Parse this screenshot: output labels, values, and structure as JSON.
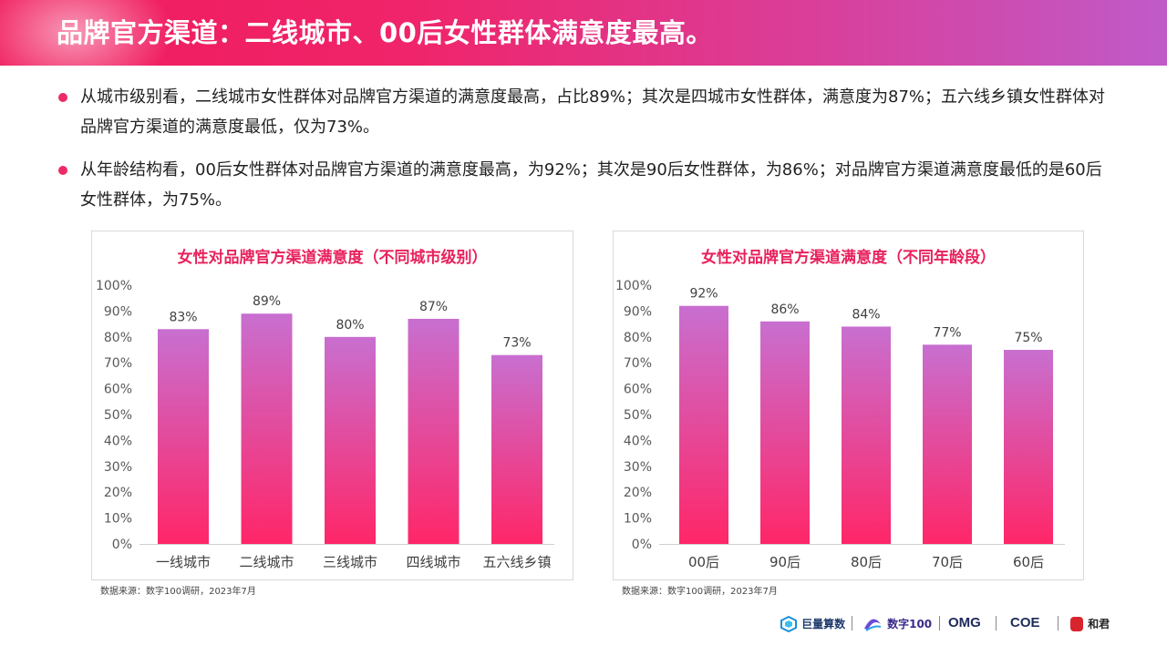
{
  "header": {
    "title": "品牌官方渠道：二线城市、00后女性群体满意度最高。"
  },
  "bullets": [
    "从城市级别看，二线城市女性群体对品牌官方渠道的满意度最高，占比89%；其次是四城市女性群体，满意度为87%；五六线乡镇女性群体对品牌官方渠道的满意度最低，仅为73%。",
    "从年龄结构看，00后女性群体对品牌官方渠道的满意度最高，为92%；其次是90后女性群体，为86%；对品牌官方渠道满意度最低的是60后女性群体，为75%。"
  ],
  "colors": {
    "accent": "#ef2a66",
    "bar_top": "#c86fd0",
    "bar_bottom": "#ff2668",
    "title": "#e8215c"
  },
  "chart_data": [
    {
      "type": "bar",
      "title": "女性对品牌官方渠道满意度（不同城市级别）",
      "categories": [
        "一线城市",
        "二线城市",
        "三线城市",
        "四线城市",
        "五六线乡镇"
      ],
      "values": [
        83,
        89,
        80,
        87,
        73
      ],
      "value_labels": [
        "83%",
        "89%",
        "80%",
        "87%",
        "73%"
      ],
      "yticks": [
        "0%",
        "10%",
        "20%",
        "30%",
        "40%",
        "50%",
        "60%",
        "70%",
        "80%",
        "90%",
        "100%"
      ],
      "ylim": [
        0,
        100
      ],
      "grid": false,
      "source": "数据来源：数字100调研，2023年7月"
    },
    {
      "type": "bar",
      "title": "女性对品牌官方渠道满意度（不同年龄段）",
      "categories": [
        "00后",
        "90后",
        "80后",
        "70后",
        "60后"
      ],
      "values": [
        92,
        86,
        84,
        77,
        75
      ],
      "value_labels": [
        "92%",
        "86%",
        "84%",
        "77%",
        "75%"
      ],
      "yticks": [
        "0%",
        "10%",
        "20%",
        "30%",
        "40%",
        "50%",
        "60%",
        "70%",
        "80%",
        "90%",
        "100%"
      ],
      "ylim": [
        0,
        100
      ],
      "grid": false,
      "source": "数据来源：数字100调研，2023年7月"
    }
  ],
  "footer": {
    "logos": [
      {
        "name": "ocean-engine-logo",
        "text": "巨量算数"
      },
      {
        "name": "shuzi100-logo",
        "text": "数字100"
      },
      {
        "name": "omg-logo",
        "text": "OMG"
      },
      {
        "name": "coe-logo",
        "text": "COE"
      },
      {
        "name": "hejun-logo",
        "text": "和君"
      }
    ]
  }
}
